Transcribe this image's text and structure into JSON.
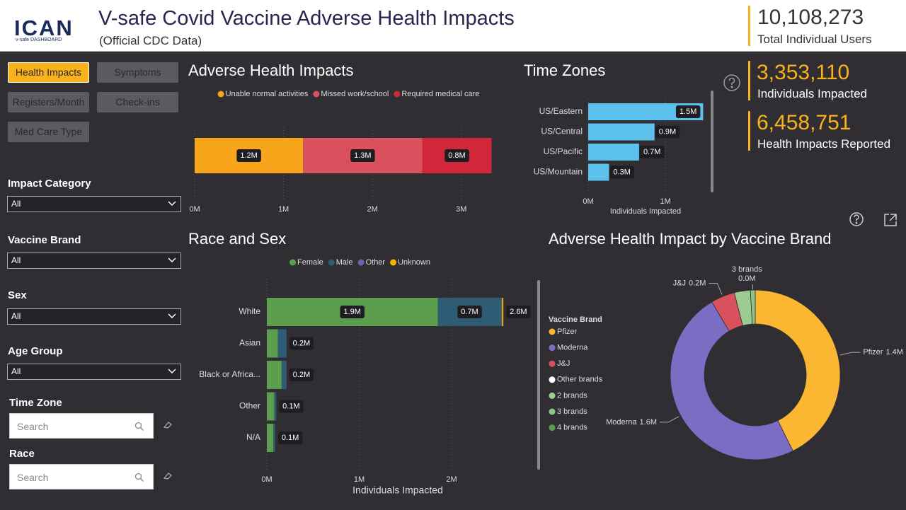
{
  "header": {
    "logo": "ICAN",
    "logo_subtitle": "v-safe DASHBOARD",
    "title": "V-safe Covid Vaccine Adverse Health Impacts",
    "subtitle": "(Official CDC Data)"
  },
  "kpis": [
    {
      "value": "10,108,273",
      "label": "Total Individual Users"
    },
    {
      "value": "3,353,110",
      "label": "Individuals Impacted"
    },
    {
      "value": "6,458,751",
      "label": "Health Impacts Reported"
    }
  ],
  "nav": [
    "Health Impacts",
    "Symptoms",
    "Registers/Month",
    "Check-ins",
    "Med Care Type"
  ],
  "filters": [
    {
      "label": "Impact Category",
      "value": "All"
    },
    {
      "label": "Vaccine Brand",
      "value": "All"
    },
    {
      "label": "Sex",
      "value": "All"
    },
    {
      "label": "Age Group",
      "value": "All"
    }
  ],
  "searches": [
    {
      "label": "Time Zone",
      "placeholder": "Search"
    },
    {
      "label": "Race",
      "placeholder": "Search"
    }
  ],
  "chart_data": [
    {
      "type": "bar",
      "orientation": "horizontal",
      "stacked": true,
      "title": "Adverse Health Impacts",
      "categories": [
        null
      ],
      "series": [
        {
          "name": "Unable normal activities",
          "color": "#f9a51b",
          "values": [
            1220000
          ],
          "value_labels": [
            "1.2M"
          ]
        },
        {
          "name": "Missed work/school",
          "color": "#d9515c",
          "values": [
            1340000
          ],
          "value_labels": [
            "1.3M"
          ]
        },
        {
          "name": "Required medical care",
          "color": "#d0283a",
          "values": [
            780000
          ],
          "value_labels": [
            "0.8M"
          ]
        }
      ],
      "xlim": [
        0,
        3400000
      ],
      "xticks": [
        {
          "value": 0,
          "label": "0M"
        },
        {
          "value": 1000000,
          "label": "1M"
        },
        {
          "value": 2000000,
          "label": "2M"
        },
        {
          "value": 3000000,
          "label": "3M"
        }
      ],
      "grid": true,
      "legend": "top"
    },
    {
      "type": "bar",
      "orientation": "horizontal",
      "title": "Time Zones",
      "x_label": "Individuals Impacted",
      "categories": [
        "US/Eastern",
        "US/Central",
        "US/Pacific",
        "US/Mountain"
      ],
      "values": [
        1490000,
        860000,
        660000,
        270000
      ],
      "value_labels": [
        "1.5M",
        "0.9M",
        "0.7M",
        "0.3M"
      ],
      "color": "#5bc0eb",
      "xlim": [
        0,
        1500000
      ],
      "xticks": [
        {
          "value": 0,
          "label": "0M"
        },
        {
          "value": 1000000,
          "label": "1M"
        }
      ],
      "grid": true
    },
    {
      "type": "bar",
      "orientation": "horizontal",
      "stacked": true,
      "title": "Race and Sex",
      "x_label": "Individuals Impacted",
      "categories": [
        "White",
        "Asian",
        "Black or Africa...",
        "Other",
        "N/A"
      ],
      "series": [
        {
          "name": "Female",
          "color": "#5b9e4d",
          "values": [
            1850000,
            120000,
            160000,
            80000,
            70000
          ],
          "value_labels": [
            "1.9M",
            null,
            null,
            null,
            null
          ]
        },
        {
          "name": "Male",
          "color": "#2e5c74",
          "values": [
            690000,
            90000,
            50000,
            20000,
            20000
          ],
          "value_labels": [
            "0.7M",
            null,
            null,
            null,
            null
          ]
        },
        {
          "name": "Other",
          "color": "#6d62ad",
          "values": [
            5000,
            2000,
            2000,
            1000,
            1000
          ]
        },
        {
          "name": "Unknown",
          "color": "#f4b400",
          "values": [
            15000,
            0,
            0,
            0,
            0
          ]
        }
      ],
      "totals": [
        2560000,
        212000,
        212000,
        101000,
        91000
      ],
      "total_labels": [
        "2.6M",
        "0.2M",
        "0.2M",
        "0.1M",
        "0.1M"
      ],
      "xlim": [
        0,
        2850000
      ],
      "xticks": [
        {
          "value": 0,
          "label": "0M"
        },
        {
          "value": 1000000,
          "label": "1M"
        },
        {
          "value": 2000000,
          "label": "2M"
        }
      ],
      "grid": true,
      "legend": "top"
    },
    {
      "type": "donut",
      "title": "Adverse Health Impact by Vaccine Brand",
      "legend_title": "Vaccine Brand",
      "legend": "left",
      "categories": [
        "Pfizer",
        "Moderna",
        "J&J",
        "Other brands",
        "2 brands",
        "3 brands",
        "4 brands"
      ],
      "values": [
        1400000,
        1600000,
        150000,
        0,
        100000,
        30000,
        0
      ],
      "value_labels": [
        "1.4M",
        "1.6M",
        "0.2M",
        null,
        null,
        "0.0M",
        null
      ],
      "colors": [
        "#fbb731",
        "#7b6cc4",
        "#d9515c",
        "#ffffff",
        "#9ccc8f",
        "#8fc486",
        "#5b9e4d"
      ]
    }
  ]
}
